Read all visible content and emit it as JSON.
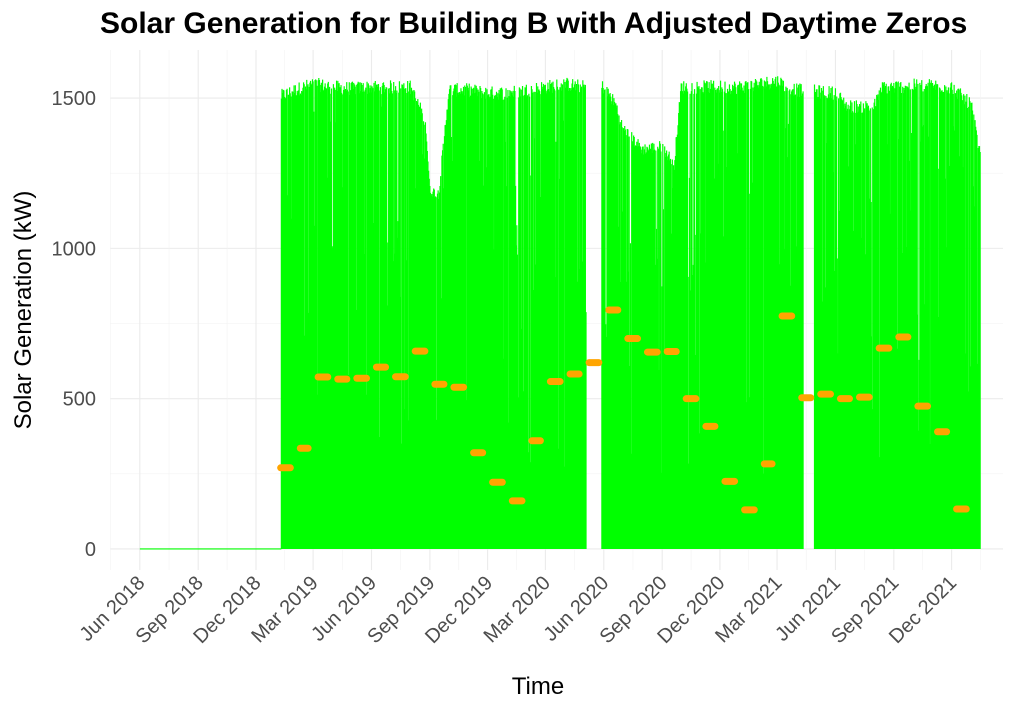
{
  "chart_data": {
    "type": "line",
    "title": "Solar Generation for Building B with Adjusted Daytime Zeros",
    "xlabel": "Time",
    "ylabel": "Solar Generation (kW)",
    "x_type": "date",
    "xlim": [
      "2018-04-15",
      "2022-02-20"
    ],
    "ylim": [
      -70,
      1660
    ],
    "x_ticks": [
      {
        "date": "2018-06-01",
        "label": "Jun 2018"
      },
      {
        "date": "2018-09-01",
        "label": "Sep 2018"
      },
      {
        "date": "2018-12-01",
        "label": "Dec 2018"
      },
      {
        "date": "2019-03-01",
        "label": "Mar 2019"
      },
      {
        "date": "2019-06-01",
        "label": "Jun 2019"
      },
      {
        "date": "2019-09-01",
        "label": "Sep 2019"
      },
      {
        "date": "2019-12-01",
        "label": "Dec 2019"
      },
      {
        "date": "2020-03-01",
        "label": "Mar 2020"
      },
      {
        "date": "2020-06-01",
        "label": "Jun 2020"
      },
      {
        "date": "2020-09-01",
        "label": "Sep 2020"
      },
      {
        "date": "2020-12-01",
        "label": "Dec 2020"
      },
      {
        "date": "2021-03-01",
        "label": "Mar 2021"
      },
      {
        "date": "2021-06-01",
        "label": "Jun 2021"
      },
      {
        "date": "2021-09-01",
        "label": "Sep 2021"
      },
      {
        "date": "2021-12-01",
        "label": "Dec 2021"
      }
    ],
    "y_ticks": [
      0,
      500,
      1000,
      1500
    ],
    "grid": true,
    "series": [
      {
        "color": "#00ff00",
        "zero_start": "2018-06-01",
        "active_start": "2019-01-10",
        "active_end": "2022-01-15",
        "envelope": [
          [
            "2019-01-10",
            1530
          ],
          [
            "2019-02-01",
            1550
          ],
          [
            "2019-03-01",
            1570
          ],
          [
            "2019-04-01",
            1560
          ],
          [
            "2019-05-01",
            1555
          ],
          [
            "2019-06-01",
            1560
          ],
          [
            "2019-07-01",
            1560
          ],
          [
            "2019-08-01",
            1560
          ],
          [
            "2019-08-25",
            1450
          ],
          [
            "2019-09-01",
            1210
          ],
          [
            "2019-09-15",
            1200
          ],
          [
            "2019-10-01",
            1550
          ],
          [
            "2019-11-01",
            1550
          ],
          [
            "2019-12-01",
            1540
          ],
          [
            "2020-01-01",
            1540
          ],
          [
            "2020-02-01",
            1550
          ],
          [
            "2020-03-01",
            1560
          ],
          [
            "2020-04-01",
            1570
          ],
          [
            "2020-05-01",
            1560
          ],
          [
            "2020-06-01",
            1560
          ],
          [
            "2020-06-20",
            1500
          ],
          [
            "2020-07-01",
            1420
          ],
          [
            "2020-08-01",
            1350
          ],
          [
            "2020-09-01",
            1360
          ],
          [
            "2020-09-20",
            1300
          ],
          [
            "2020-10-01",
            1560
          ],
          [
            "2020-11-01",
            1560
          ],
          [
            "2020-12-01",
            1560
          ],
          [
            "2021-01-01",
            1560
          ],
          [
            "2021-02-01",
            1570
          ],
          [
            "2021-03-01",
            1580
          ],
          [
            "2021-03-20",
            1560
          ],
          [
            "2021-04-01",
            1550
          ],
          [
            "2021-05-01",
            1545
          ],
          [
            "2021-06-01",
            1540
          ],
          [
            "2021-06-20",
            1495
          ],
          [
            "2021-08-01",
            1495
          ],
          [
            "2021-08-15",
            1560
          ],
          [
            "2021-09-01",
            1560
          ],
          [
            "2021-10-01",
            1565
          ],
          [
            "2021-11-01",
            1565
          ],
          [
            "2021-12-01",
            1560
          ],
          [
            "2022-01-01",
            1500
          ],
          [
            "2022-01-15",
            1330
          ]
        ],
        "gaps": [
          [
            "2020-05-05",
            "2020-05-28"
          ],
          [
            "2021-04-12",
            "2021-04-28"
          ]
        ]
      },
      {
        "color": "#ffa500",
        "monthly_average": [
          [
            "2019-01",
            270
          ],
          [
            "2019-02",
            335
          ],
          [
            "2019-03",
            572
          ],
          [
            "2019-04",
            565
          ],
          [
            "2019-05",
            568
          ],
          [
            "2019-06",
            605
          ],
          [
            "2019-07",
            573
          ],
          [
            "2019-08",
            658
          ],
          [
            "2019-09",
            548
          ],
          [
            "2019-10",
            538
          ],
          [
            "2019-11",
            320
          ],
          [
            "2019-12",
            222
          ],
          [
            "2020-01",
            160
          ],
          [
            "2020-02",
            360
          ],
          [
            "2020-03",
            557
          ],
          [
            "2020-04",
            582
          ],
          [
            "2020-05",
            620
          ],
          [
            "2020-06",
            795
          ],
          [
            "2020-07",
            700
          ],
          [
            "2020-08",
            655
          ],
          [
            "2020-09",
            657
          ],
          [
            "2020-10",
            500
          ],
          [
            "2020-11",
            408
          ],
          [
            "2020-12",
            225
          ],
          [
            "2021-01",
            130
          ],
          [
            "2021-02",
            283
          ],
          [
            "2021-03",
            775
          ],
          [
            "2021-04",
            503
          ],
          [
            "2021-05",
            515
          ],
          [
            "2021-06",
            500
          ],
          [
            "2021-07",
            505
          ],
          [
            "2021-08",
            668
          ],
          [
            "2021-09",
            705
          ],
          [
            "2021-10",
            475
          ],
          [
            "2021-11",
            390
          ],
          [
            "2021-12",
            133
          ]
        ]
      }
    ]
  }
}
